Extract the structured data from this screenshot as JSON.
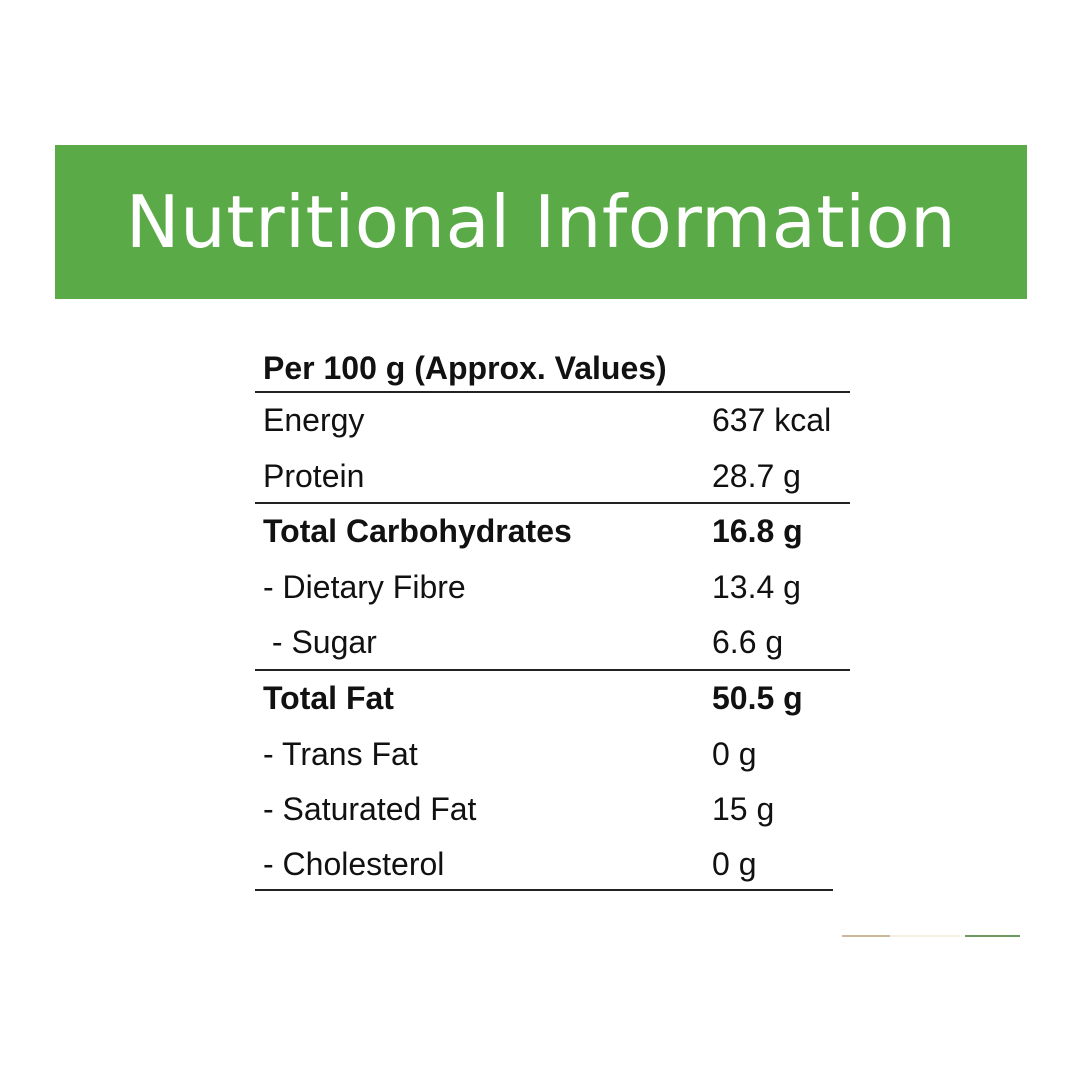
{
  "title": "Nutritional Information",
  "colors": {
    "banner": "#5aab47",
    "text": "#111111"
  },
  "table": {
    "header": "Per 100 g (Approx. Values)",
    "rows": [
      {
        "label": "Energy",
        "value": "637 kcal",
        "bold": false
      },
      {
        "label": "Protein",
        "value": "28.7 g",
        "bold": false
      },
      {
        "label": "Total Carbohydrates",
        "value": "16.8 g",
        "bold": true
      },
      {
        "label": "- Dietary Fibre",
        "value": "13.4 g",
        "bold": false
      },
      {
        "label": " - Sugar",
        "value": "6.6 g",
        "bold": false
      },
      {
        "label": "Total Fat",
        "value": "50.5 g",
        "bold": true
      },
      {
        "label": "- Trans Fat",
        "value": "0 g",
        "bold": false
      },
      {
        "label": "- Saturated Fat",
        "value": "15 g",
        "bold": false
      },
      {
        "label": "- Cholesterol",
        "value": "0 g",
        "bold": false
      }
    ]
  }
}
